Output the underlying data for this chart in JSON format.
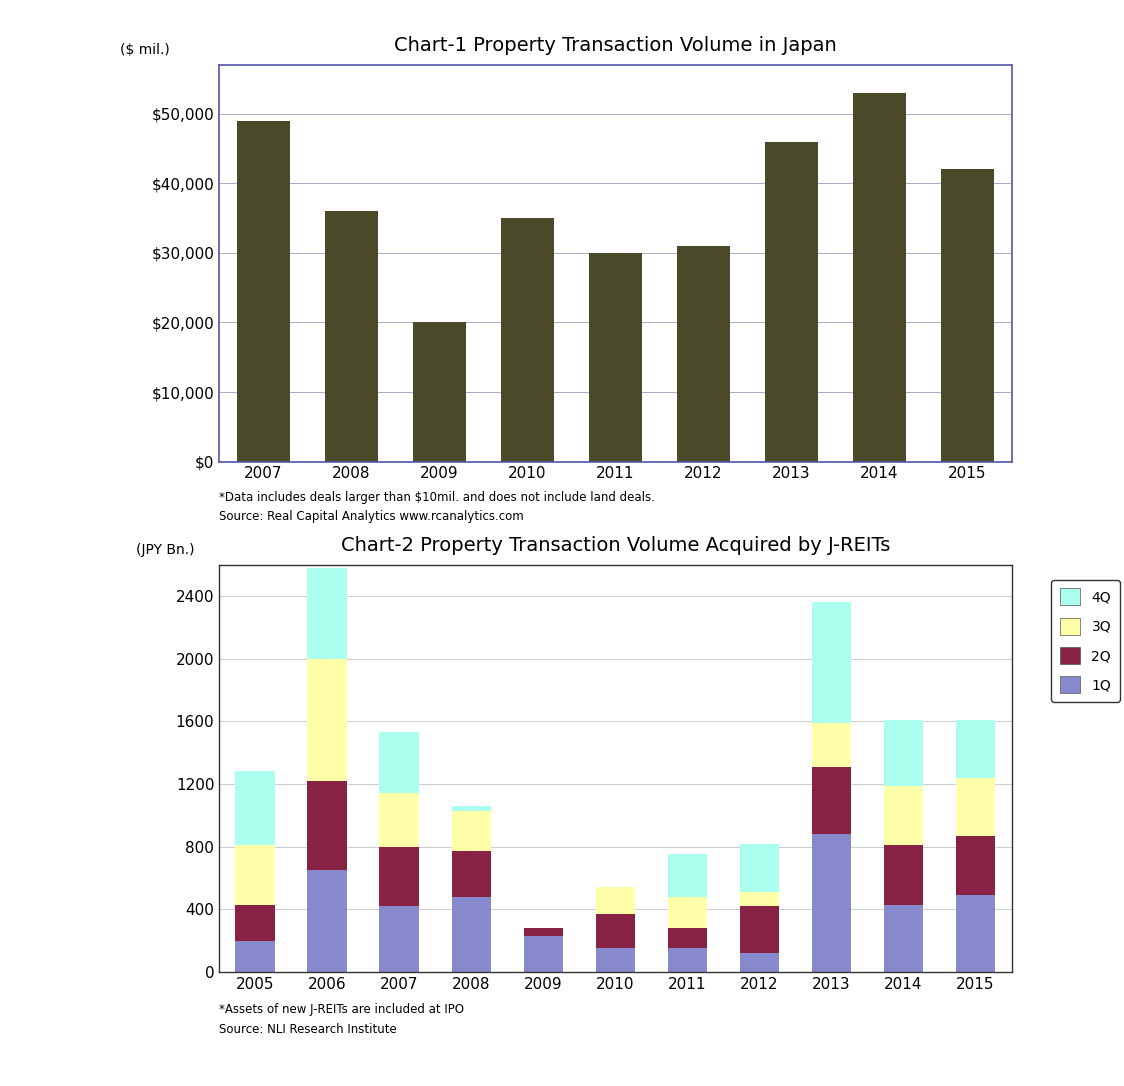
{
  "chart1": {
    "title": "Chart-1 Property Transaction Volume in Japan",
    "ylabel": "($ mil.)",
    "years": [
      2007,
      2008,
      2009,
      2010,
      2011,
      2012,
      2013,
      2014,
      2015
    ],
    "values": [
      49000,
      36000,
      20000,
      35000,
      30000,
      31000,
      46000,
      53000,
      42000
    ],
    "bar_color": "#4a4a2a",
    "yticks": [
      0,
      10000,
      20000,
      30000,
      40000,
      50000
    ],
    "yticklabels": [
      "$0",
      "$10,000",
      "$20,000",
      "$30,000",
      "$40,000",
      "$50,000"
    ],
    "ylim_max": 57000,
    "footnote1": "*Data includes deals larger than $10mil. and does not include land deals.",
    "footnote2": "Source: Real Capital Analytics www.rcanalytics.com"
  },
  "chart2": {
    "title": "Chart-2 Property Transaction Volume Acquired by J-REITs",
    "ylabel": "(JPY Bn.)",
    "years": [
      2005,
      2006,
      2007,
      2008,
      2009,
      2010,
      2011,
      2012,
      2013,
      2014,
      2015
    ],
    "q1": [
      200,
      650,
      420,
      480,
      230,
      150,
      150,
      120,
      880,
      430,
      490
    ],
    "q2": [
      230,
      570,
      380,
      290,
      50,
      220,
      130,
      300,
      430,
      380,
      380
    ],
    "q3": [
      380,
      780,
      340,
      260,
      0,
      170,
      200,
      90,
      280,
      380,
      370
    ],
    "q4": [
      470,
      580,
      390,
      30,
      0,
      0,
      270,
      310,
      770,
      420,
      370
    ],
    "colors": [
      "#8888cc",
      "#882244",
      "#ffffaa",
      "#aaffee"
    ],
    "yticks": [
      0,
      400,
      800,
      1200,
      1600,
      2000,
      2400
    ],
    "ylim_max": 2600,
    "footnote1": "*Assets of new J-REITs are included at IPO",
    "footnote2": "Source: NLI Research Institute",
    "legend_labels": [
      "4Q",
      "3Q",
      "2Q",
      "1Q"
    ]
  }
}
